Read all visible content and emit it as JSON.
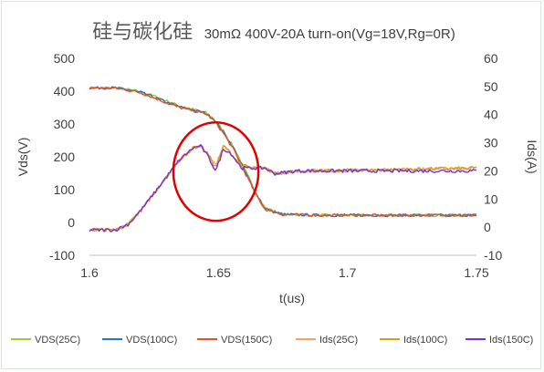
{
  "chart_data": {
    "type": "line",
    "title": "硅与碳化硅",
    "subtitle": "30mΩ 400V-20A turn-on(Vg=18V,Rg=0R)",
    "xlabel": "t(us)",
    "ylabel_left": "Vds(V)",
    "ylabel_right": "Ids(A)",
    "xlim": [
      1.6,
      1.75
    ],
    "ylim_left": [
      -100,
      500
    ],
    "ylim_right": [
      -10,
      60
    ],
    "x_ticks": [
      "1.6",
      "1.65",
      "1.7",
      "1.75"
    ],
    "y_left_ticks": [
      "-100",
      "0",
      "100",
      "200",
      "300",
      "400",
      "500"
    ],
    "y_right_ticks": [
      "-10",
      "0",
      "10",
      "20",
      "30",
      "40",
      "50",
      "60"
    ],
    "grid": false,
    "legend_position": "bottom",
    "annotation": {
      "shape": "ellipse",
      "color": "#e00000",
      "center_x": 1.649,
      "center_y_left": 155,
      "semi_x": 0.0165,
      "semi_y_left": 300
    },
    "series": [
      {
        "name": "VDS(25C)",
        "axis": "left",
        "color": "#9acd32",
        "x": [
          1.6,
          1.61,
          1.615,
          1.62,
          1.625,
          1.63,
          1.635,
          1.64,
          1.645,
          1.648,
          1.652,
          1.656,
          1.66,
          1.664,
          1.668,
          1.675,
          1.69,
          1.75
        ],
        "y": [
          410,
          410,
          405,
          398,
          385,
          370,
          355,
          345,
          335,
          318,
          278,
          228,
          165,
          100,
          45,
          25,
          22,
          22
        ]
      },
      {
        "name": "VDS(100C)",
        "axis": "left",
        "color": "#1f78c8",
        "x": [
          1.6,
          1.61,
          1.615,
          1.62,
          1.625,
          1.63,
          1.635,
          1.64,
          1.645,
          1.648,
          1.652,
          1.656,
          1.66,
          1.664,
          1.668,
          1.675,
          1.69,
          1.75
        ],
        "y": [
          410,
          410,
          404,
          396,
          382,
          366,
          352,
          343,
          333,
          316,
          275,
          224,
          160,
          96,
          42,
          24,
          22,
          22
        ]
      },
      {
        "name": "VDS(150C)",
        "axis": "left",
        "color": "#e8502a",
        "x": [
          1.6,
          1.61,
          1.615,
          1.62,
          1.625,
          1.63,
          1.635,
          1.64,
          1.645,
          1.648,
          1.652,
          1.656,
          1.66,
          1.664,
          1.668,
          1.675,
          1.69,
          1.75
        ],
        "y": [
          410,
          409,
          403,
          395,
          380,
          364,
          350,
          341,
          331,
          313,
          271,
          220,
          156,
          93,
          40,
          24,
          22,
          22
        ]
      },
      {
        "name": "Ids(25C)",
        "axis": "right",
        "color": "#f4a460",
        "x": [
          1.6,
          1.61,
          1.615,
          1.62,
          1.625,
          1.63,
          1.635,
          1.64,
          1.643,
          1.646,
          1.649,
          1.652,
          1.655,
          1.659,
          1.663,
          1.668,
          1.672,
          1.68,
          1.69,
          1.75
        ],
        "y": [
          -1,
          -1,
          1,
          6,
          12,
          18,
          24,
          28,
          29,
          26,
          22,
          29,
          26,
          22,
          21,
          21,
          19,
          20,
          20,
          21
        ]
      },
      {
        "name": "Ids(100C)",
        "axis": "right",
        "color": "#d4a017",
        "x": [
          1.6,
          1.61,
          1.615,
          1.62,
          1.625,
          1.63,
          1.635,
          1.64,
          1.643,
          1.646,
          1.649,
          1.652,
          1.655,
          1.659,
          1.663,
          1.668,
          1.672,
          1.68,
          1.69,
          1.75
        ],
        "y": [
          -1,
          -1,
          1,
          6,
          12,
          18,
          24,
          28,
          29,
          26,
          21,
          29,
          26,
          22,
          21,
          21,
          19,
          20,
          20,
          21
        ]
      },
      {
        "name": "Ids(150C)",
        "axis": "right",
        "color": "#7b2fd9",
        "x": [
          1.6,
          1.61,
          1.615,
          1.62,
          1.625,
          1.63,
          1.635,
          1.64,
          1.643,
          1.646,
          1.649,
          1.652,
          1.655,
          1.659,
          1.663,
          1.668,
          1.672,
          1.68,
          1.69,
          1.75
        ],
        "y": [
          -1,
          -1,
          1,
          6,
          12,
          18,
          24,
          28,
          29,
          25,
          20,
          28,
          26,
          21,
          21,
          21,
          19,
          20,
          20,
          20
        ]
      }
    ]
  }
}
